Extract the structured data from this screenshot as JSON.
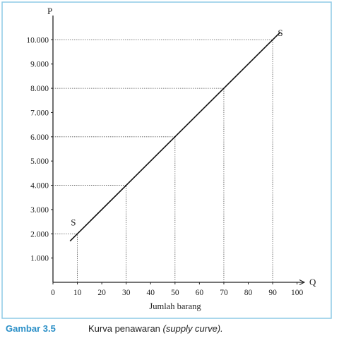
{
  "chart_data": {
    "type": "line",
    "y_label": "P",
    "x_label": "Q",
    "x_title": "Jumlah barang",
    "xlim": [
      0,
      103
    ],
    "ylim": [
      0,
      11000
    ],
    "xticks": [
      0,
      10,
      20,
      30,
      40,
      50,
      60,
      70,
      80,
      90,
      100
    ],
    "yticks": [
      {
        "value": 1000,
        "label": "1.000"
      },
      {
        "value": 2000,
        "label": "2.000"
      },
      {
        "value": 3000,
        "label": "3.000"
      },
      {
        "value": 4000,
        "label": "4.000"
      },
      {
        "value": 5000,
        "label": "5.000"
      },
      {
        "value": 6000,
        "label": "6.000"
      },
      {
        "value": 7000,
        "label": "7.000"
      },
      {
        "value": 8000,
        "label": "8.000"
      },
      {
        "value": 9000,
        "label": "9.000"
      },
      {
        "value": 10000,
        "label": "10.000"
      }
    ],
    "series": [
      {
        "name": "S",
        "color": "#111111",
        "x": [
          7,
          93
        ],
        "values": [
          1700,
          10300
        ]
      }
    ],
    "guides": {
      "x": [
        10,
        30,
        50,
        70,
        90
      ],
      "values": [
        2000,
        4000,
        6000,
        8000,
        10000
      ]
    },
    "annotations": [
      "S",
      "S"
    ]
  },
  "caption": {
    "label": "Gambar 3.5",
    "text": "Kurva penawaran",
    "italic": "(supply curve)."
  }
}
